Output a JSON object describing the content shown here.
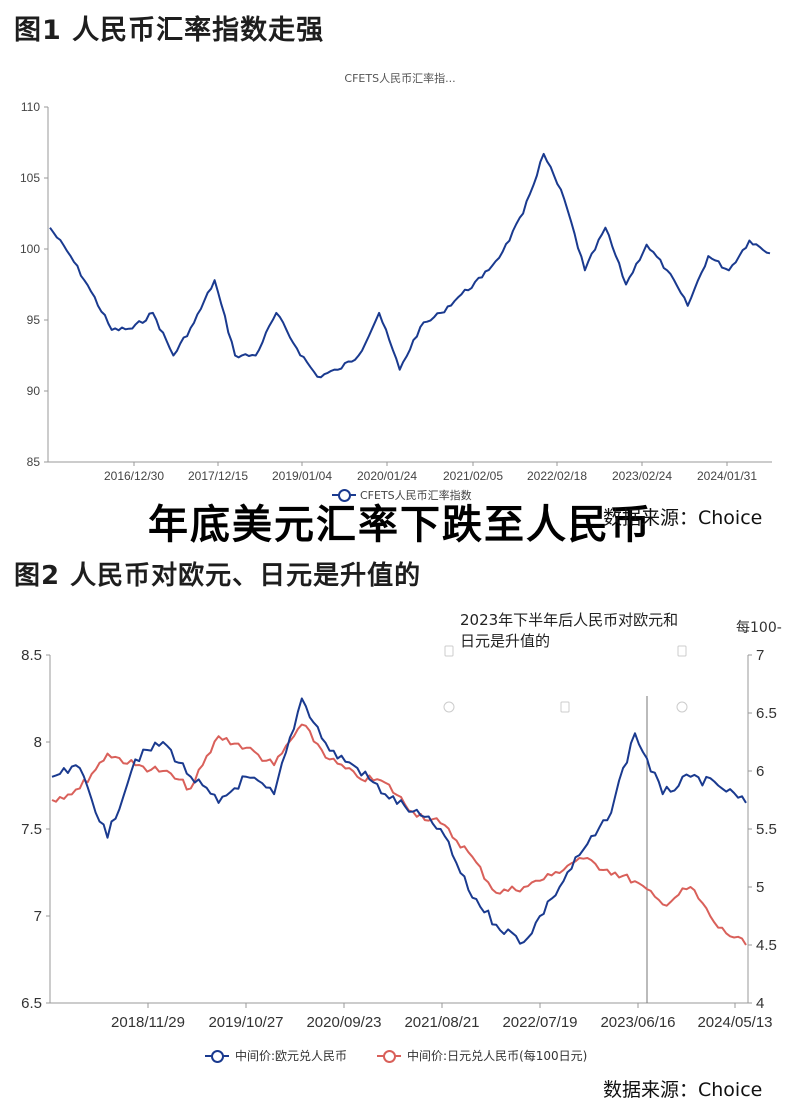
{
  "figure1": {
    "title": "图1  人民币汇率指数走强",
    "chart_subtitle": "CFETS人民币汇率指...",
    "legend": "CFETS人民币汇率指数",
    "source": "数据来源：Choice"
  },
  "overlay_headline": "年底美元汇率下跌至人民币",
  "figure2": {
    "title": "图2  人民币对欧元、日元是升值的",
    "annotation": "2023年下半年后人民币对欧元和日元是升值的",
    "right_axis_unit": "每100-",
    "legend": [
      "中间价:欧元兑人民币",
      "中间价:日元兑人民币(每100日元)"
    ],
    "source": "数据来源：Choice"
  },
  "colors": {
    "navy": "#1a3a8f",
    "red": "#d9605a",
    "axis": "#999999"
  },
  "chart_data": [
    {
      "type": "line",
      "title": "CFETS人民币汇率指数",
      "ylim": [
        85,
        110
      ],
      "yticks": [
        85,
        90,
        95,
        100,
        105,
        110
      ],
      "xticks": [
        "2016/12/30",
        "2017/12/15",
        "2019/01/04",
        "2020/01/24",
        "2021/02/05",
        "2022/02/18",
        "2023/02/24",
        "2024/01/31"
      ],
      "series": [
        {
          "name": "CFETS人民币汇率指数",
          "x": [
            "2016/01",
            "2016/04",
            "2016/07",
            "2016/10",
            "2016/12/30",
            "2017/04",
            "2017/07",
            "2017/12/15",
            "2018/03",
            "2018/06",
            "2018/09",
            "2019/01/04",
            "2019/04",
            "2019/08",
            "2019/12",
            "2020/01/24",
            "2020/04",
            "2020/06",
            "2020/09",
            "2020/12",
            "2021/02/05",
            "2021/05",
            "2021/09",
            "2021/12",
            "2022/02/18",
            "2022/03",
            "2022/05",
            "2022/08",
            "2022/11",
            "2023/02/24",
            "2023/05",
            "2023/08",
            "2023/11",
            "2024/01/31",
            "2024/04",
            "2024/06"
          ],
          "values": [
            101.5,
            99.5,
            97.0,
            94.3,
            94.4,
            95.5,
            92.5,
            94.8,
            97.8,
            92.5,
            92.5,
            95.5,
            93.0,
            91.0,
            91.5,
            92.5,
            95.5,
            91.5,
            94.5,
            95.5,
            96.8,
            98.0,
            99.8,
            102.5,
            106.7,
            103.5,
            98.5,
            101.5,
            97.5,
            100.3,
            98.5,
            96.0,
            99.5,
            98.5,
            100.6,
            99.7
          ]
        }
      ]
    },
    {
      "type": "line",
      "title": "人民币对欧元、日元",
      "ylim_left": [
        6.5,
        8.5
      ],
      "ylim_right": [
        4,
        7
      ],
      "yticks_left": [
        6.5,
        7,
        7.5,
        8,
        8.5
      ],
      "yticks_right": [
        4,
        4.5,
        5,
        5.5,
        6,
        6.5,
        7
      ],
      "xticks": [
        "2018/11/29",
        "2019/10/27",
        "2020/09/23",
        "2021/08/21",
        "2022/07/19",
        "2023/06/16",
        "2024/05/13"
      ],
      "annotation_line": "2023/06/16",
      "series": [
        {
          "name": "中间价:欧元兑人民币",
          "axis": "left",
          "x": [
            "2018/01",
            "2018/03",
            "2018/06",
            "2018/09",
            "2018/11/29",
            "2019/03",
            "2019/06",
            "2019/10/27",
            "2020/01",
            "2020/05",
            "2020/09/23",
            "2020/12",
            "2021/03",
            "2021/08/21",
            "2021/11",
            "2022/02",
            "2022/05",
            "2022/07/19",
            "2022/10",
            "2023/01",
            "2023/04",
            "2023/06/16",
            "2023/09",
            "2023/12",
            "2024/03",
            "2024/05/13"
          ],
          "values": [
            7.8,
            7.85,
            7.45,
            7.9,
            8.0,
            7.8,
            7.65,
            7.8,
            7.7,
            8.25,
            7.95,
            7.85,
            7.7,
            7.6,
            7.5,
            7.15,
            6.95,
            6.85,
            7.1,
            7.35,
            7.55,
            8.05,
            7.7,
            7.8,
            7.75,
            7.65
          ]
        },
        {
          "name": "中间价:日元兑人民币(每100日元)",
          "axis": "right",
          "x": [
            "2018/01",
            "2018/03",
            "2018/06",
            "2018/09",
            "2018/11/29",
            "2019/03",
            "2019/06",
            "2019/10/27",
            "2020/01",
            "2020/05",
            "2020/09/23",
            "2020/12",
            "2021/03",
            "2021/08/21",
            "2021/11",
            "2022/02",
            "2022/05",
            "2022/07/19",
            "2022/10",
            "2023/01",
            "2023/04",
            "2023/06/16",
            "2023/09",
            "2023/12",
            "2024/03",
            "2024/05/13"
          ],
          "values": [
            5.75,
            5.85,
            6.15,
            6.05,
            6.0,
            5.85,
            6.3,
            6.2,
            6.05,
            6.4,
            6.1,
            5.95,
            5.9,
            5.65,
            5.55,
            5.3,
            4.95,
            5.0,
            5.1,
            5.25,
            5.15,
            5.05,
            4.85,
            5.0,
            4.65,
            4.5
          ]
        }
      ]
    }
  ]
}
